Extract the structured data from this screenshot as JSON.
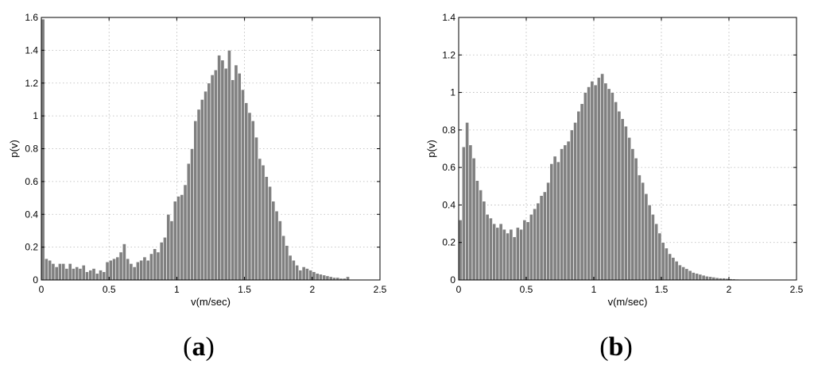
{
  "chart_data": [
    {
      "type": "bar",
      "panel_label": "a",
      "xlabel": "v(m/sec)",
      "ylabel": "p(v)",
      "xlim": [
        0,
        2.5
      ],
      "ylim": [
        0,
        1.6
      ],
      "xticks": [
        "0",
        "0.5",
        "1",
        "1.5",
        "2",
        "2.5"
      ],
      "yticks": [
        "0",
        "0.2",
        "0.4",
        "0.6",
        "0.8",
        "1",
        "1.2",
        "1.4",
        "1.6"
      ],
      "grid": true,
      "bar_color": "#808080",
      "bin_width": 0.025,
      "bin_start": 0,
      "values": [
        1.59,
        0.13,
        0.12,
        0.1,
        0.08,
        0.1,
        0.1,
        0.07,
        0.1,
        0.07,
        0.08,
        0.07,
        0.09,
        0.05,
        0.06,
        0.07,
        0.04,
        0.06,
        0.05,
        0.11,
        0.12,
        0.13,
        0.14,
        0.17,
        0.22,
        0.13,
        0.1,
        0.08,
        0.11,
        0.12,
        0.14,
        0.12,
        0.16,
        0.19,
        0.17,
        0.23,
        0.26,
        0.4,
        0.36,
        0.48,
        0.51,
        0.52,
        0.58,
        0.71,
        0.8,
        0.97,
        1.04,
        1.1,
        1.15,
        1.2,
        1.25,
        1.28,
        1.37,
        1.34,
        1.29,
        1.4,
        1.22,
        1.31,
        1.26,
        1.16,
        1.08,
        1.02,
        0.97,
        0.87,
        0.74,
        0.7,
        0.63,
        0.57,
        0.48,
        0.42,
        0.36,
        0.27,
        0.21,
        0.15,
        0.12,
        0.09,
        0.06,
        0.08,
        0.07,
        0.06,
        0.05,
        0.04,
        0.035,
        0.03,
        0.025,
        0.02,
        0.015,
        0.015,
        0.01,
        0.01,
        0.02
      ]
    },
    {
      "type": "bar",
      "panel_label": "b",
      "xlabel": "v(m/sec)",
      "ylabel": "p(v)",
      "xlim": [
        0,
        2.5
      ],
      "ylim": [
        0,
        1.4
      ],
      "xticks": [
        "0",
        "0.5",
        "1",
        "1.5",
        "2",
        "2.5"
      ],
      "yticks": [
        "0",
        "0.2",
        "0.4",
        "0.6",
        "0.8",
        "1",
        "1.2",
        "1.4"
      ],
      "grid": true,
      "bar_color": "#808080",
      "bin_width": 0.025,
      "bin_start": 0,
      "values": [
        0.32,
        0.71,
        0.84,
        0.72,
        0.65,
        0.53,
        0.48,
        0.42,
        0.35,
        0.33,
        0.3,
        0.28,
        0.3,
        0.27,
        0.25,
        0.27,
        0.23,
        0.28,
        0.27,
        0.32,
        0.31,
        0.35,
        0.38,
        0.41,
        0.45,
        0.47,
        0.52,
        0.62,
        0.66,
        0.63,
        0.7,
        0.72,
        0.74,
        0.8,
        0.84,
        0.9,
        0.94,
        1.0,
        1.03,
        1.06,
        1.04,
        1.08,
        1.1,
        1.05,
        1.02,
        1.0,
        0.95,
        0.9,
        0.86,
        0.82,
        0.76,
        0.7,
        0.65,
        0.56,
        0.52,
        0.46,
        0.4,
        0.35,
        0.3,
        0.25,
        0.2,
        0.17,
        0.14,
        0.12,
        0.1,
        0.08,
        0.07,
        0.06,
        0.05,
        0.04,
        0.035,
        0.03,
        0.025,
        0.02,
        0.018,
        0.015,
        0.012,
        0.01,
        0.01,
        0.008,
        0.006,
        0.005,
        0.004
      ]
    }
  ]
}
